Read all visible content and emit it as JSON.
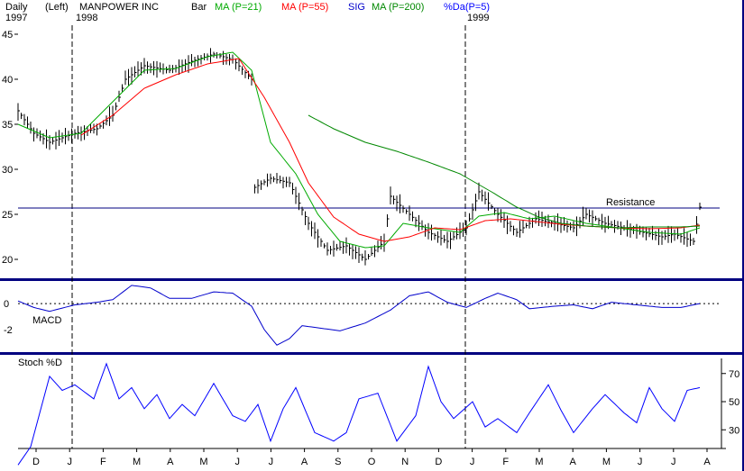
{
  "header": {
    "period": "Daily",
    "axis_side": "(Left)",
    "company": "MANPOWER INC",
    "chart_kind": "Bar",
    "ma21": "MA (P=21)",
    "ma55": "MA (P=55)",
    "sig": "SIG",
    "ma200": "MA (P=200)",
    "pctd": "%Da(P=5)",
    "year1997": "1997",
    "year1998": "1998",
    "year1999": "1999"
  },
  "colors": {
    "price": "#000000",
    "ma21": "#00aa00",
    "ma55": "#ff0000",
    "sig": "#0000cc",
    "ma200": "#008800",
    "pctd": "#0000ff",
    "divider": "#000080"
  },
  "chart_data": [
    {
      "type": "bar",
      "panel": "price",
      "annotation": "Resistance",
      "resistance_level": 25.7,
      "y_ticks": [
        20,
        25,
        30,
        35,
        40,
        45
      ],
      "ylim": [
        18,
        46
      ],
      "months": [
        "D",
        "J",
        "F",
        "M",
        "A",
        "M",
        "J",
        "J",
        "A",
        "S",
        "O",
        "N",
        "D",
        "J",
        "F",
        "M",
        "A",
        "M",
        "J",
        "J",
        "A"
      ],
      "close_anchors": [
        [
          0,
          36.5
        ],
        [
          5,
          34
        ],
        [
          10,
          33
        ],
        [
          18,
          34
        ],
        [
          25,
          34.5
        ],
        [
          30,
          36
        ],
        [
          34,
          40
        ],
        [
          40,
          41.5
        ],
        [
          48,
          41
        ],
        [
          55,
          42
        ],
        [
          62,
          42.8
        ],
        [
          68,
          42.2
        ],
        [
          74,
          40
        ],
        [
          75,
          28
        ],
        [
          80,
          29
        ],
        [
          86,
          28.5
        ],
        [
          92,
          24
        ],
        [
          98,
          21
        ],
        [
          104,
          21.5
        ],
        [
          110,
          20
        ],
        [
          116,
          22
        ],
        [
          118,
          27
        ],
        [
          124,
          25
        ],
        [
          130,
          23
        ],
        [
          136,
          22
        ],
        [
          142,
          23.5
        ],
        [
          146,
          27.5
        ],
        [
          152,
          25
        ],
        [
          158,
          23
        ],
        [
          164,
          24.5
        ],
        [
          170,
          24
        ],
        [
          176,
          23.5
        ],
        [
          180,
          25
        ],
        [
          186,
          24
        ],
        [
          192,
          23.5
        ],
        [
          198,
          23
        ],
        [
          204,
          22.5
        ],
        [
          208,
          22.8
        ],
        [
          214,
          22
        ],
        [
          216,
          25.8
        ]
      ],
      "series": [
        {
          "name": "MA (P=21)",
          "anchors": [
            [
              0,
              35
            ],
            [
              10,
              33.5
            ],
            [
              20,
              34
            ],
            [
              30,
              37.5
            ],
            [
              40,
              41
            ],
            [
              50,
              41.2
            ],
            [
              60,
              42.5
            ],
            [
              68,
              43
            ],
            [
              74,
              41
            ],
            [
              80,
              33
            ],
            [
              88,
              29.5
            ],
            [
              95,
              25
            ],
            [
              102,
              22
            ],
            [
              110,
              21.3
            ],
            [
              116,
              21.5
            ],
            [
              122,
              24
            ],
            [
              130,
              23.5
            ],
            [
              140,
              23
            ],
            [
              146,
              24.8
            ],
            [
              154,
              25.2
            ],
            [
              162,
              24.5
            ],
            [
              170,
              24.8
            ],
            [
              180,
              24
            ],
            [
              190,
              23.5
            ],
            [
              200,
              23
            ],
            [
              210,
              22.8
            ],
            [
              216,
              23.5
            ]
          ]
        },
        {
          "name": "MA (P=55)",
          "anchors": [
            [
              20,
              33.8
            ],
            [
              30,
              36
            ],
            [
              40,
              39
            ],
            [
              50,
              40.5
            ],
            [
              60,
              41.7
            ],
            [
              70,
              42.3
            ],
            [
              78,
              38
            ],
            [
              86,
              33
            ],
            [
              92,
              28.5
            ],
            [
              100,
              24.7
            ],
            [
              108,
              22.8
            ],
            [
              116,
              22
            ],
            [
              124,
              22.5
            ],
            [
              132,
              23.5
            ],
            [
              140,
              23.3
            ],
            [
              148,
              24.3
            ],
            [
              156,
              24.5
            ],
            [
              164,
              24.2
            ],
            [
              172,
              23.9
            ],
            [
              180,
              23.7
            ],
            [
              190,
              23.5
            ],
            [
              200,
              23.4
            ],
            [
              210,
              23.5
            ],
            [
              216,
              23.8
            ]
          ]
        },
        {
          "name": "MA (P=200)",
          "anchors": [
            [
              92,
              36
            ],
            [
              100,
              34.5
            ],
            [
              110,
              33
            ],
            [
              120,
              32
            ],
            [
              130,
              30.8
            ],
            [
              140,
              29.5
            ],
            [
              150,
              27.5
            ],
            [
              158,
              25.8
            ],
            [
              165,
              24.7
            ],
            [
              172,
              24
            ],
            [
              180,
              23.7
            ],
            [
              190,
              23.5
            ],
            [
              200,
              23.6
            ],
            [
              210,
              23.6
            ],
            [
              216,
              23.7
            ]
          ]
        }
      ]
    },
    {
      "type": "line",
      "panel": "macd",
      "label": "MACD",
      "y_ticks": [
        0,
        -2
      ],
      "ylim": [
        -3.6,
        1.6
      ],
      "series": [
        {
          "name": "MACD",
          "anchors": [
            [
              0,
              0.2
            ],
            [
              5,
              -0.3
            ],
            [
              10,
              -0.6
            ],
            [
              18,
              -0.1
            ],
            [
              25,
              0.1
            ],
            [
              30,
              0.3
            ],
            [
              36,
              1.4
            ],
            [
              42,
              1.2
            ],
            [
              48,
              0.4
            ],
            [
              55,
              0.4
            ],
            [
              62,
              0.9
            ],
            [
              68,
              0.8
            ],
            [
              74,
              -0.2
            ],
            [
              78,
              -2.0
            ],
            [
              82,
              -3.2
            ],
            [
              86,
              -2.7
            ],
            [
              90,
              -1.7
            ],
            [
              96,
              -1.9
            ],
            [
              102,
              -2.1
            ],
            [
              110,
              -1.5
            ],
            [
              118,
              -0.5
            ],
            [
              124,
              0.6
            ],
            [
              130,
              0.9
            ],
            [
              136,
              0.1
            ],
            [
              142,
              -0.3
            ],
            [
              148,
              0.4
            ],
            [
              152,
              0.8
            ],
            [
              158,
              0.3
            ],
            [
              162,
              -0.4
            ],
            [
              170,
              -0.2
            ],
            [
              176,
              -0.1
            ],
            [
              182,
              -0.4
            ],
            [
              188,
              0.1
            ],
            [
              196,
              -0.1
            ],
            [
              204,
              -0.3
            ],
            [
              210,
              -0.3
            ],
            [
              216,
              0.0
            ]
          ]
        }
      ]
    },
    {
      "type": "line",
      "panel": "stoch",
      "label": "Stoch %D",
      "y_ticks": [
        30,
        50,
        70
      ],
      "ylim": [
        18,
        82
      ],
      "series": [
        {
          "name": "%Da(P=5)",
          "anchors": [
            [
              0,
              5
            ],
            [
              4,
              18
            ],
            [
              10,
              68
            ],
            [
              14,
              58
            ],
            [
              18,
              62
            ],
            [
              24,
              52
            ],
            [
              28,
              77
            ],
            [
              32,
              52
            ],
            [
              36,
              60
            ],
            [
              40,
              45
            ],
            [
              44,
              55
            ],
            [
              48,
              38
            ],
            [
              52,
              48
            ],
            [
              56,
              40
            ],
            [
              62,
              63
            ],
            [
              68,
              40
            ],
            [
              72,
              36
            ],
            [
              76,
              48
            ],
            [
              80,
              22
            ],
            [
              84,
              45
            ],
            [
              88,
              60
            ],
            [
              94,
              28
            ],
            [
              100,
              22
            ],
            [
              104,
              28
            ],
            [
              108,
              52
            ],
            [
              114,
              56
            ],
            [
              120,
              22
            ],
            [
              126,
              40
            ],
            [
              130,
              75
            ],
            [
              134,
              50
            ],
            [
              138,
              38
            ],
            [
              144,
              50
            ],
            [
              148,
              32
            ],
            [
              152,
              38
            ],
            [
              158,
              28
            ],
            [
              162,
              42
            ],
            [
              168,
              62
            ],
            [
              172,
              44
            ],
            [
              176,
              28
            ],
            [
              182,
              45
            ],
            [
              186,
              55
            ],
            [
              192,
              42
            ],
            [
              196,
              35
            ],
            [
              200,
              60
            ],
            [
              204,
              45
            ],
            [
              208,
              36
            ],
            [
              212,
              58
            ],
            [
              216,
              60
            ]
          ]
        }
      ]
    }
  ]
}
